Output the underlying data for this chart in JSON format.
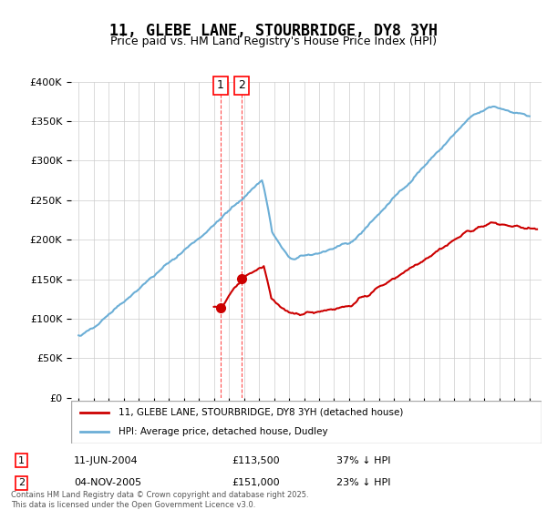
{
  "title": "11, GLEBE LANE, STOURBRIDGE, DY8 3YH",
  "subtitle": "Price paid vs. HM Land Registry's House Price Index (HPI)",
  "legend_line1": "11, GLEBE LANE, STOURBRIDGE, DY8 3YH (detached house)",
  "legend_line2": "HPI: Average price, detached house, Dudley",
  "sale1_label": "1",
  "sale1_date": "11-JUN-2004",
  "sale1_price": "£113,500",
  "sale1_note": "37% ↓ HPI",
  "sale2_label": "2",
  "sale2_date": "04-NOV-2005",
  "sale2_price": "£151,000",
  "sale2_note": "23% ↓ HPI",
  "footnote": "Contains HM Land Registry data © Crown copyright and database right 2025.\nThis data is licensed under the Open Government Licence v3.0.",
  "hpi_color": "#6baed6",
  "sale_color": "#cc0000",
  "sale_marker_color": "#cc0000",
  "background_color": "#ffffff",
  "ylim_min": 0,
  "ylim_max": 400000,
  "sale1_year": 2004.44,
  "sale1_value": 113500,
  "sale2_year": 2005.84,
  "sale2_value": 151000
}
